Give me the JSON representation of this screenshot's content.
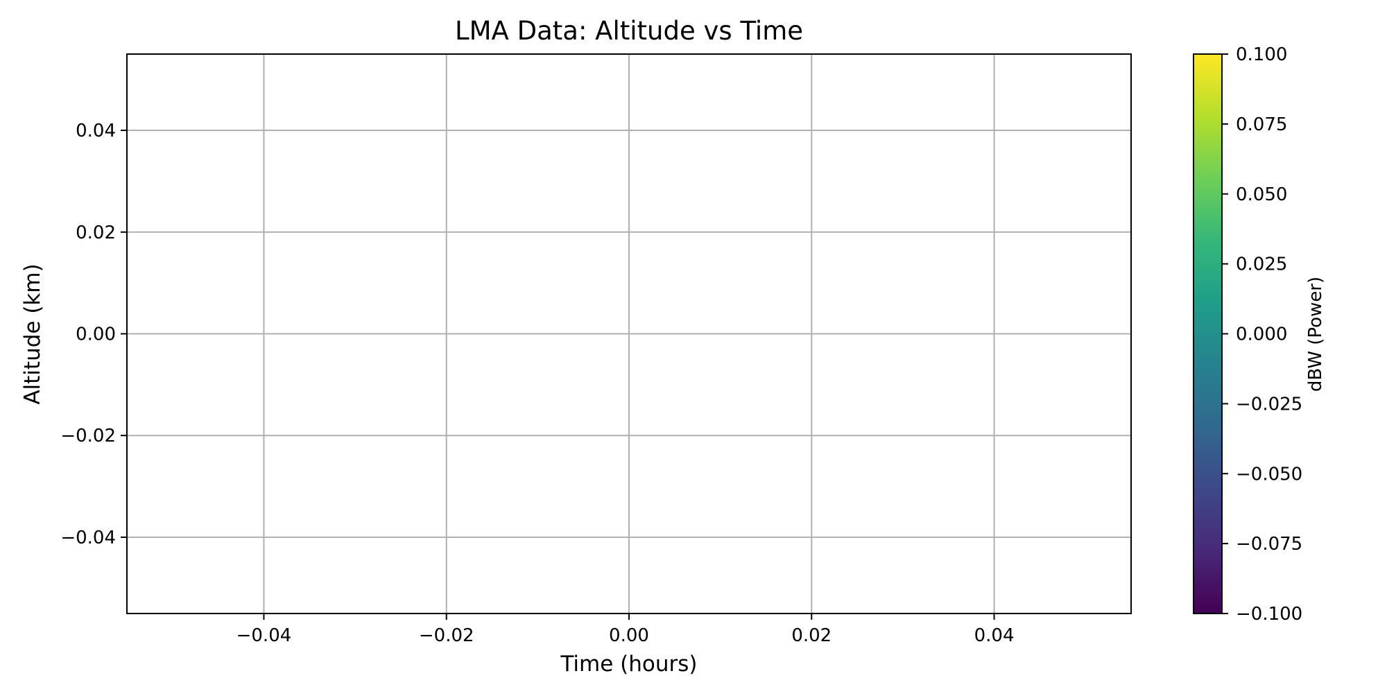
{
  "chart_data": {
    "type": "scatter",
    "title": "LMA Data: Altitude vs Time",
    "xlabel": "Time (hours)",
    "ylabel": "Altitude (km)",
    "xlim": [
      -0.055,
      0.055
    ],
    "ylim": [
      -0.055,
      0.055
    ],
    "grid": true,
    "x_ticks": [
      -0.04,
      -0.02,
      0.0,
      0.02,
      0.04
    ],
    "x_tick_labels": [
      "−0.04",
      "−0.02",
      "0.00",
      "0.02",
      "0.04"
    ],
    "y_ticks": [
      -0.04,
      -0.02,
      0.0,
      0.02,
      0.04
    ],
    "y_tick_labels": [
      "−0.04",
      "−0.02",
      "0.00",
      "0.02",
      "0.04"
    ],
    "points": [],
    "colorbar": {
      "label": "dBW (Power)",
      "colormap": "viridis",
      "range": [
        -0.1,
        0.1
      ],
      "ticks": [
        -0.1,
        -0.075,
        -0.05,
        -0.025,
        0.0,
        0.025,
        0.05,
        0.075,
        0.1
      ],
      "tick_labels": [
        "−0.100",
        "−0.075",
        "−0.050",
        "−0.025",
        "0.000",
        "0.025",
        "0.050",
        "0.075",
        "0.100"
      ],
      "colors": [
        "#440154",
        "#482878",
        "#3e4989",
        "#31688e",
        "#26828e",
        "#1f9e89",
        "#35b779",
        "#6ece58",
        "#b5de2b",
        "#fde725"
      ]
    }
  }
}
